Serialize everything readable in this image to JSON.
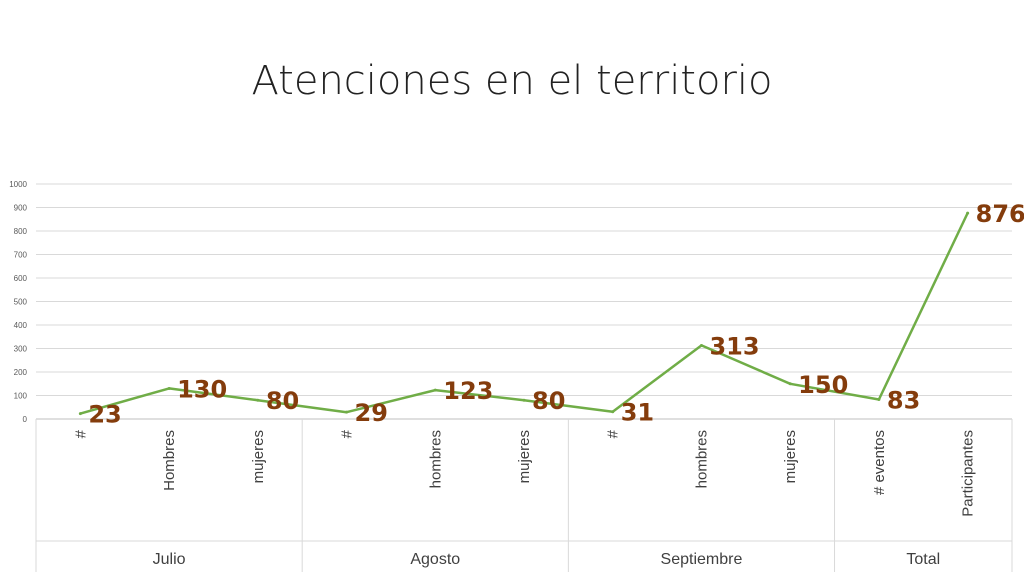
{
  "slide": {
    "title": "Atenciones en el territorio"
  },
  "chart_data": {
    "type": "line",
    "title": "Atenciones en el territorio",
    "xlabel": "",
    "ylabel": "",
    "ylim": [
      0,
      1000
    ],
    "yticks": [
      0,
      100,
      200,
      300,
      400,
      500,
      600,
      700,
      800,
      900,
      1000
    ],
    "grid": true,
    "legend": "none",
    "line_color": "#70AD47",
    "label_color": "#843C0C",
    "categories": [
      "#",
      "Hombres",
      "mujeres",
      "#",
      "hombres",
      "mujeres",
      "#",
      "hombres",
      "mujeres",
      "# eventos",
      "Participantes"
    ],
    "groups": [
      {
        "label": "Julio",
        "count": 3
      },
      {
        "label": "Agosto",
        "count": 3
      },
      {
        "label": "Septiembre",
        "count": 3
      },
      {
        "label": "Total",
        "count": 2
      }
    ],
    "values": [
      23,
      130,
      80,
      29,
      123,
      80,
      31,
      313,
      150,
      83,
      876
    ]
  }
}
